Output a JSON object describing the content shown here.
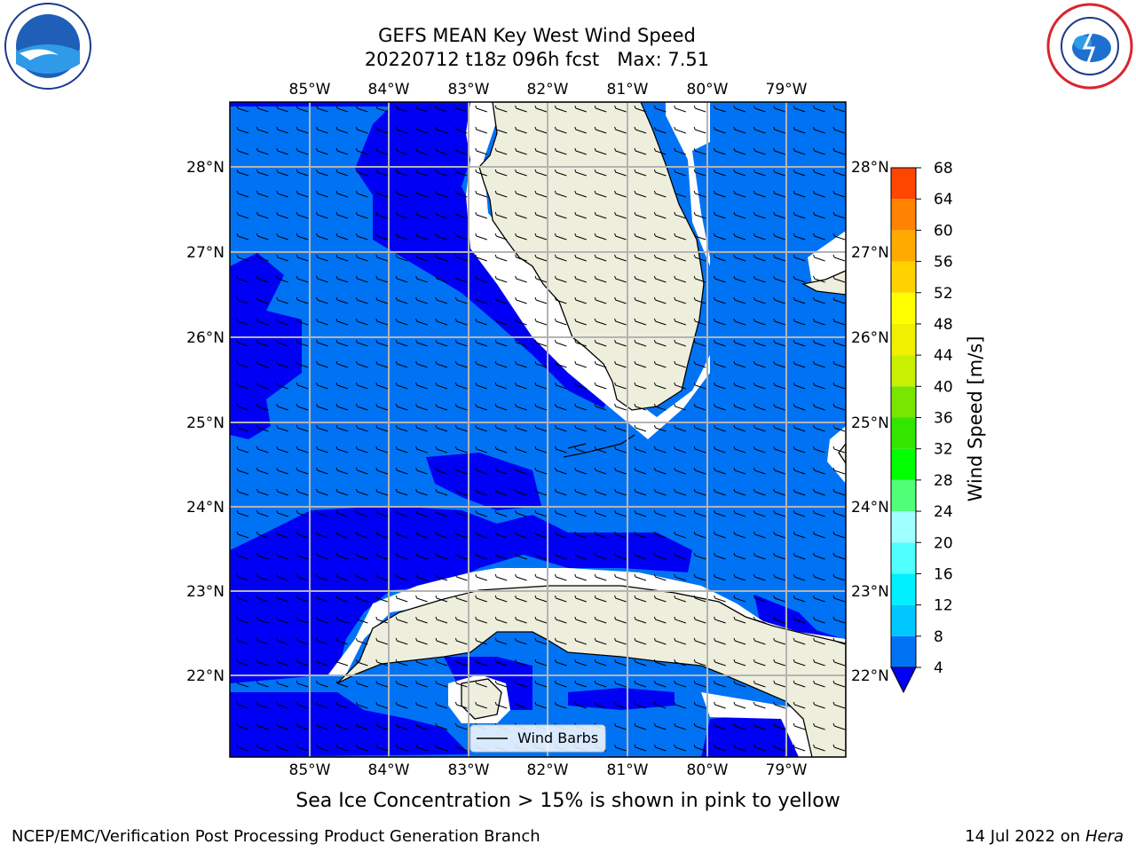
{
  "title": {
    "line1": "GEFS MEAN Key West Wind Speed",
    "line2": "20220712 t18z 096h fcst   Max: 7.51"
  },
  "logos": {
    "left": "noaa-logo",
    "right": "nws-logo"
  },
  "map": {
    "lon_labels": [
      "85°W",
      "84°W",
      "83°W",
      "82°W",
      "81°W",
      "80°W",
      "79°W"
    ],
    "lat_labels": [
      "28°N",
      "27°N",
      "26°N",
      "25°N",
      "24°N",
      "23°N",
      "22°N"
    ],
    "legend_label": "Wind Barbs",
    "colors": {
      "ocean_low": "#0000f5",
      "ocean_mid": "#0073f5",
      "land": "#eeeedc",
      "grid": "#b4b4b4"
    }
  },
  "colorbar": {
    "label": "Wind Speed [m/s]",
    "ticks": [
      "4",
      "8",
      "12",
      "16",
      "20",
      "24",
      "28",
      "32",
      "36",
      "40",
      "44",
      "48",
      "52",
      "56",
      "60",
      "64",
      "68"
    ],
    "colors": [
      "#0073f5",
      "#00c8ff",
      "#00f0ff",
      "#50ffff",
      "#a0ffff",
      "#50ff78",
      "#00ff00",
      "#32e600",
      "#78e600",
      "#c8f000",
      "#f0f000",
      "#ffff00",
      "#ffd200",
      "#ffaa00",
      "#ff8200",
      "#ff4600",
      "#ff0000"
    ]
  },
  "caption": "Sea Ice Concentration > 15% is shown in pink to yellow",
  "footer": {
    "credit": "NCEP/EMC/Verification Post Processing Product Generation Branch",
    "date": "14 Jul 2022 on ",
    "machine": "Hera"
  }
}
